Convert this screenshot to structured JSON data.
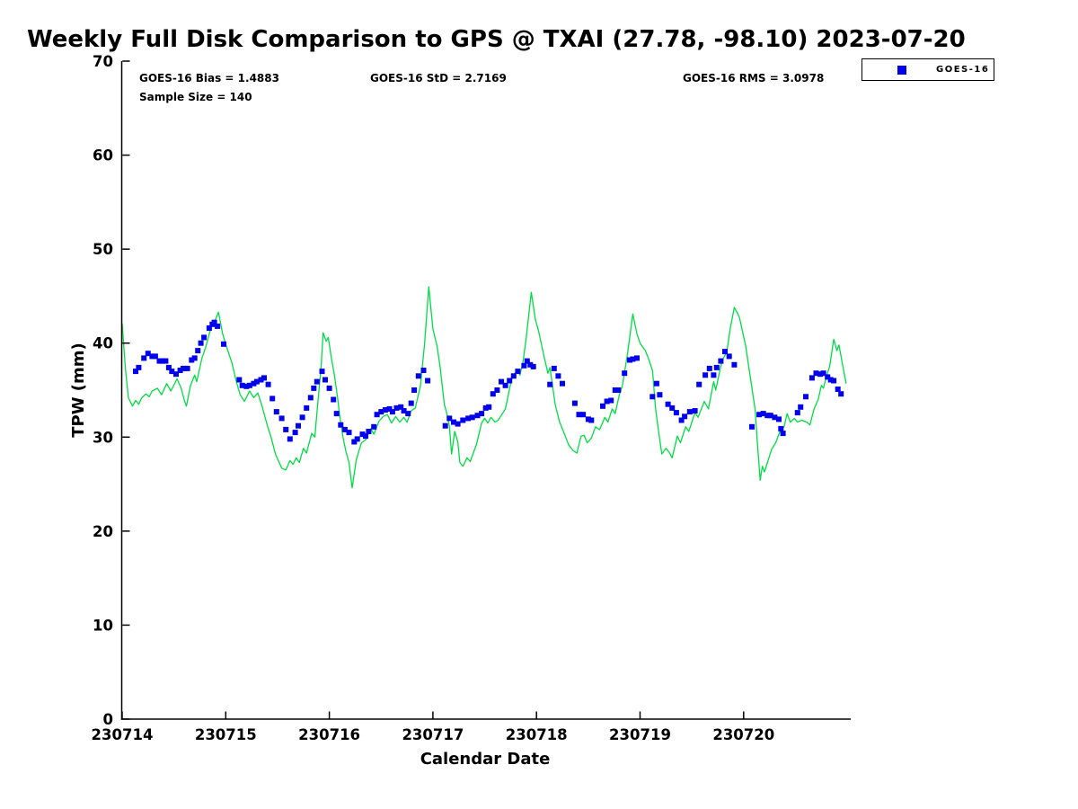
{
  "header": {
    "title": "Weekly Full Disk Comparison to GPS @ TXAI (27.78, -98.10) 2023-07-20"
  },
  "annotations": {
    "bias": "GOES-16 Bias = 1.4883",
    "std": "GOES-16 StD = 2.7169",
    "rms": "GOES-16 RMS = 3.0978",
    "sample": "Sample Size = 140"
  },
  "legend": {
    "entries": [
      {
        "label": "GOES-16",
        "marker": "square",
        "color": "#0000ee"
      }
    ]
  },
  "chart_data": {
    "type": "line",
    "title": "Weekly Full Disk Comparison to GPS @ TXAI (27.78, -98.10) 2023-07-20",
    "xlabel": "Calendar Date",
    "ylabel": "TPW (mm)",
    "x_tick_labels": [
      "230714",
      "230715",
      "230716",
      "230717",
      "230718",
      "230719",
      "230720"
    ],
    "x_tick_positions_days": [
      0,
      1,
      2,
      3,
      4,
      5,
      6
    ],
    "xlim_days": [
      0,
      7.03
    ],
    "ylim": [
      0,
      70
    ],
    "y_ticks": [
      0,
      10,
      20,
      30,
      40,
      50,
      60,
      70
    ],
    "grid": false,
    "legend_position": "top-right-outside",
    "stats": {
      "bias": 1.4883,
      "std": 2.7169,
      "rms": 3.0978,
      "sample_size": 140
    },
    "series": [
      {
        "name": "GPS",
        "type": "line",
        "color": "#00dd44",
        "x_days": [
          0.0,
          0.03,
          0.06,
          0.1,
          0.13,
          0.16,
          0.19,
          0.23,
          0.26,
          0.29,
          0.34,
          0.38,
          0.43,
          0.47,
          0.53,
          0.57,
          0.6,
          0.62,
          0.66,
          0.7,
          0.72,
          0.77,
          0.81,
          0.84,
          0.87,
          0.9,
          0.93,
          0.97,
          1.01,
          1.06,
          1.1,
          1.14,
          1.18,
          1.23,
          1.27,
          1.31,
          1.35,
          1.4,
          1.44,
          1.48,
          1.54,
          1.58,
          1.62,
          1.65,
          1.68,
          1.71,
          1.75,
          1.78,
          1.83,
          1.86,
          1.88,
          1.92,
          1.94,
          1.97,
          1.99,
          2.02,
          2.05,
          2.08,
          2.1,
          2.13,
          2.16,
          2.19,
          2.22,
          2.26,
          2.31,
          2.35,
          2.4,
          2.43,
          2.48,
          2.52,
          2.56,
          2.6,
          2.64,
          2.68,
          2.72,
          2.75,
          2.79,
          2.83,
          2.88,
          2.92,
          2.96,
          3.0,
          3.04,
          3.07,
          3.11,
          3.14,
          3.16,
          3.18,
          3.21,
          3.24,
          3.26,
          3.29,
          3.33,
          3.36,
          3.4,
          3.42,
          3.47,
          3.5,
          3.53,
          3.56,
          3.6,
          3.63,
          3.66,
          3.7,
          3.76,
          3.79,
          3.82,
          3.84,
          3.87,
          3.9,
          3.95,
          3.99,
          4.02,
          4.07,
          4.11,
          4.13,
          4.18,
          4.22,
          4.26,
          4.31,
          4.35,
          4.39,
          4.43,
          4.46,
          4.49,
          4.53,
          4.57,
          4.61,
          4.66,
          4.69,
          4.73,
          4.76,
          4.8,
          4.83,
          4.88,
          4.93,
          4.97,
          5.0,
          5.05,
          5.08,
          5.12,
          5.15,
          5.18,
          5.21,
          5.25,
          5.28,
          5.31,
          5.36,
          5.39,
          5.44,
          5.47,
          5.53,
          5.56,
          5.62,
          5.66,
          5.71,
          5.73,
          5.79,
          5.82,
          5.84,
          5.87,
          5.91,
          5.94,
          5.96,
          6.02,
          6.05,
          6.11,
          6.13,
          6.16,
          6.18,
          6.2,
          6.23,
          6.27,
          6.31,
          6.35,
          6.39,
          6.42,
          6.45,
          6.49,
          6.52,
          6.56,
          6.61,
          6.64,
          6.68,
          6.72,
          6.75,
          6.77,
          6.8,
          6.83,
          6.87,
          6.9,
          6.92,
          6.96,
          6.99
        ],
        "y": [
          42.1,
          37.4,
          34.2,
          33.3,
          33.9,
          33.5,
          34.2,
          34.6,
          34.3,
          34.9,
          35.2,
          34.5,
          35.7,
          34.9,
          36.2,
          35.2,
          33.9,
          33.3,
          35.5,
          36.6,
          35.9,
          38.4,
          39.7,
          41.0,
          41.9,
          42.5,
          43.3,
          41.0,
          39.5,
          37.9,
          36.0,
          34.5,
          33.8,
          34.9,
          34.2,
          34.7,
          33.3,
          31.3,
          29.9,
          28.2,
          26.7,
          26.5,
          27.5,
          27.1,
          27.8,
          27.3,
          28.8,
          28.3,
          30.4,
          30.0,
          32.6,
          37.4,
          41.1,
          40.2,
          40.6,
          38.4,
          36.5,
          34.2,
          32.3,
          30.1,
          28.5,
          27.3,
          24.6,
          27.6,
          29.4,
          29.7,
          30.9,
          30.3,
          31.7,
          32.2,
          32.4,
          31.5,
          32.2,
          31.6,
          32.1,
          31.6,
          32.8,
          33.1,
          35.5,
          40.0,
          46.0,
          41.5,
          39.7,
          37.4,
          33.5,
          32.3,
          31.1,
          28.2,
          30.6,
          29.5,
          27.3,
          26.9,
          27.8,
          27.4,
          28.6,
          29.2,
          31.5,
          32.0,
          31.5,
          32.1,
          31.6,
          31.8,
          32.3,
          33.0,
          36.2,
          36.8,
          37.1,
          36.6,
          38.0,
          40.5,
          45.4,
          42.5,
          41.3,
          38.7,
          36.8,
          37.4,
          33.5,
          31.7,
          30.6,
          29.2,
          28.6,
          28.3,
          30.1,
          30.2,
          29.4,
          29.9,
          31.1,
          30.8,
          32.1,
          31.6,
          33.0,
          32.5,
          34.5,
          35.5,
          39.0,
          43.1,
          41.0,
          40.0,
          39.2,
          38.4,
          37.1,
          33.0,
          30.5,
          28.2,
          28.8,
          28.4,
          27.8,
          30.1,
          29.4,
          31.1,
          30.6,
          32.6,
          32.1,
          33.8,
          33.0,
          35.9,
          35.0,
          38.1,
          38.7,
          39.3,
          41.5,
          43.8,
          43.2,
          42.7,
          39.7,
          37.4,
          33.0,
          29.8,
          25.4,
          26.9,
          26.3,
          27.3,
          28.7,
          29.4,
          30.6,
          31.1,
          32.5,
          31.6,
          32.0,
          31.6,
          31.8,
          31.6,
          31.3,
          33.0,
          34.0,
          35.5,
          35.2,
          36.5,
          37.5,
          40.4,
          39.2,
          39.8,
          37.4,
          35.7
        ]
      },
      {
        "name": "GOES-16",
        "type": "scatter",
        "marker": "square",
        "color": "#0000ee",
        "x_days": [
          0.13,
          0.16,
          0.21,
          0.25,
          0.29,
          0.32,
          0.36,
          0.39,
          0.42,
          0.45,
          0.48,
          0.52,
          0.56,
          0.59,
          0.63,
          0.67,
          0.7,
          0.73,
          0.76,
          0.79,
          0.84,
          0.87,
          0.89,
          0.92,
          0.98,
          1.13,
          1.16,
          1.2,
          1.23,
          1.27,
          1.3,
          1.34,
          1.37,
          1.41,
          1.45,
          1.49,
          1.54,
          1.58,
          1.62,
          1.67,
          1.7,
          1.74,
          1.78,
          1.82,
          1.85,
          1.88,
          1.93,
          1.96,
          2.0,
          2.04,
          2.07,
          2.11,
          2.15,
          2.19,
          2.24,
          2.27,
          2.32,
          2.35,
          2.38,
          2.43,
          2.46,
          2.5,
          2.54,
          2.58,
          2.61,
          2.65,
          2.69,
          2.72,
          2.76,
          2.79,
          2.82,
          2.86,
          2.91,
          2.95,
          3.12,
          3.16,
          3.2,
          3.24,
          3.29,
          3.34,
          3.38,
          3.43,
          3.47,
          3.51,
          3.54,
          3.58,
          3.62,
          3.66,
          3.7,
          3.74,
          3.78,
          3.82,
          3.88,
          3.91,
          3.94,
          3.97,
          4.13,
          4.17,
          4.21,
          4.25,
          4.37,
          4.41,
          4.45,
          4.5,
          4.53,
          4.64,
          4.68,
          4.72,
          4.76,
          4.79,
          4.85,
          4.9,
          4.93,
          4.97,
          5.12,
          5.16,
          5.19,
          5.27,
          5.31,
          5.35,
          5.4,
          5.43,
          5.48,
          5.53,
          5.57,
          5.63,
          5.67,
          5.71,
          5.74,
          5.78,
          5.82,
          5.86,
          5.91,
          6.08,
          6.15,
          6.19,
          6.23,
          6.26,
          6.3,
          6.34,
          6.36,
          6.38,
          6.52,
          6.55,
          6.6,
          6.66,
          6.7,
          6.74,
          6.77,
          6.81,
          6.84,
          6.87,
          6.91,
          6.94
        ],
        "y": [
          37.0,
          37.4,
          38.4,
          38.9,
          38.6,
          38.6,
          38.1,
          38.1,
          38.1,
          37.4,
          37.0,
          36.7,
          37.1,
          37.3,
          37.3,
          38.2,
          38.4,
          39.2,
          40.0,
          40.6,
          41.6,
          42.0,
          42.2,
          41.8,
          39.9,
          36.1,
          35.5,
          35.4,
          35.5,
          35.7,
          35.9,
          36.1,
          36.3,
          35.6,
          34.1,
          32.7,
          32.0,
          30.8,
          29.8,
          30.5,
          31.2,
          32.1,
          33.1,
          34.2,
          35.2,
          35.9,
          37.0,
          36.1,
          35.2,
          34.0,
          32.5,
          31.3,
          30.8,
          30.5,
          29.5,
          29.8,
          30.3,
          30.1,
          30.6,
          31.1,
          32.4,
          32.7,
          32.9,
          33.0,
          32.7,
          33.1,
          33.2,
          32.8,
          32.5,
          33.6,
          35.0,
          36.5,
          37.1,
          36.0,
          31.2,
          32.0,
          31.6,
          31.4,
          31.8,
          32.0,
          32.1,
          32.3,
          32.5,
          33.1,
          33.2,
          34.6,
          35.0,
          35.9,
          35.5,
          36.0,
          36.5,
          37.0,
          37.6,
          38.1,
          37.7,
          37.5,
          35.6,
          37.3,
          36.5,
          35.7,
          33.6,
          32.4,
          32.4,
          31.9,
          31.8,
          33.3,
          33.8,
          33.9,
          35.0,
          35.0,
          36.8,
          38.2,
          38.3,
          38.4,
          34.3,
          35.7,
          34.5,
          33.5,
          33.1,
          32.6,
          31.8,
          32.2,
          32.7,
          32.8,
          35.6,
          36.6,
          37.3,
          36.6,
          37.4,
          38.1,
          39.1,
          38.6,
          37.7,
          31.1,
          32.4,
          32.5,
          32.3,
          32.3,
          32.1,
          31.9,
          30.9,
          30.4,
          32.6,
          33.2,
          34.3,
          36.3,
          36.8,
          36.7,
          36.8,
          36.4,
          36.1,
          36.0,
          35.1,
          34.6
        ]
      }
    ]
  }
}
